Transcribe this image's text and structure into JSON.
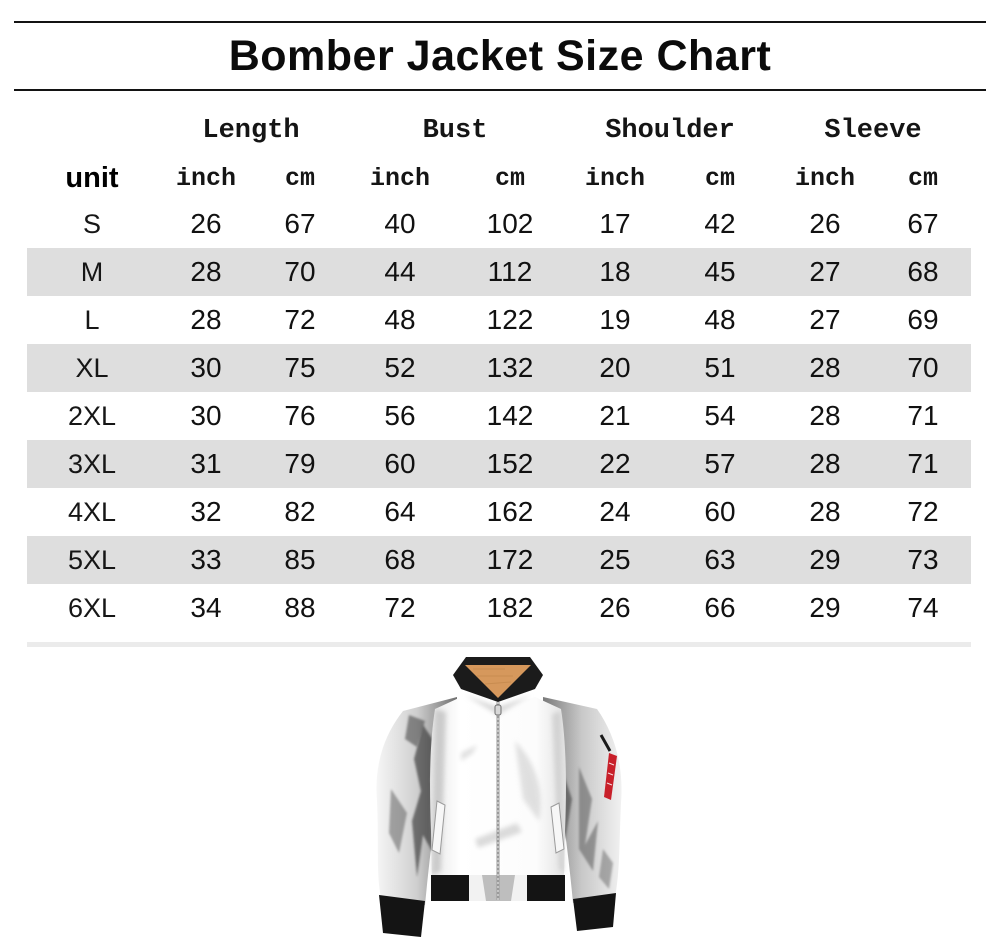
{
  "title": "Bomber Jacket Size Chart",
  "chart_data": {
    "type": "table",
    "title": "Bomber Jacket Size Chart",
    "groups": [
      "Length",
      "Bust",
      "Shoulder",
      "Sleeve"
    ],
    "unit_label": "unit",
    "unit_headers": [
      "inch",
      "cm",
      "inch",
      "cm",
      "inch",
      "cm",
      "inch",
      "cm"
    ],
    "rows": [
      {
        "size": "S",
        "values": [
          26,
          67,
          40,
          102,
          17,
          42,
          26,
          67
        ]
      },
      {
        "size": "M",
        "values": [
          28,
          70,
          44,
          112,
          18,
          45,
          27,
          68
        ]
      },
      {
        "size": "L",
        "values": [
          28,
          72,
          48,
          122,
          19,
          48,
          27,
          69
        ]
      },
      {
        "size": "XL",
        "values": [
          30,
          75,
          52,
          132,
          20,
          51,
          28,
          70
        ]
      },
      {
        "size": "2XL",
        "values": [
          30,
          76,
          56,
          142,
          21,
          54,
          28,
          71
        ]
      },
      {
        "size": "3XL",
        "values": [
          31,
          79,
          60,
          152,
          22,
          57,
          28,
          71
        ]
      },
      {
        "size": "4XL",
        "values": [
          32,
          82,
          64,
          162,
          24,
          60,
          28,
          72
        ]
      },
      {
        "size": "5XL",
        "values": [
          33,
          85,
          68,
          172,
          25,
          63,
          29,
          73
        ]
      },
      {
        "size": "6XL",
        "values": [
          34,
          88,
          72,
          182,
          26,
          66,
          29,
          74
        ]
      }
    ],
    "striped_rows": [
      "M",
      "XL",
      "3XL",
      "5XL"
    ]
  },
  "jacket_image": {
    "description": "white bomber jacket, front view, zipped",
    "colors": {
      "body": "#ffffff",
      "collar": "#1b1b1b",
      "collar_lining_orange": "#d6985c",
      "trim_black": "#141414",
      "sleeve_tag_red": "#c8202a"
    }
  },
  "colors": {
    "row_stripe": "#dedede",
    "divider_strip": "#ebebeb"
  }
}
